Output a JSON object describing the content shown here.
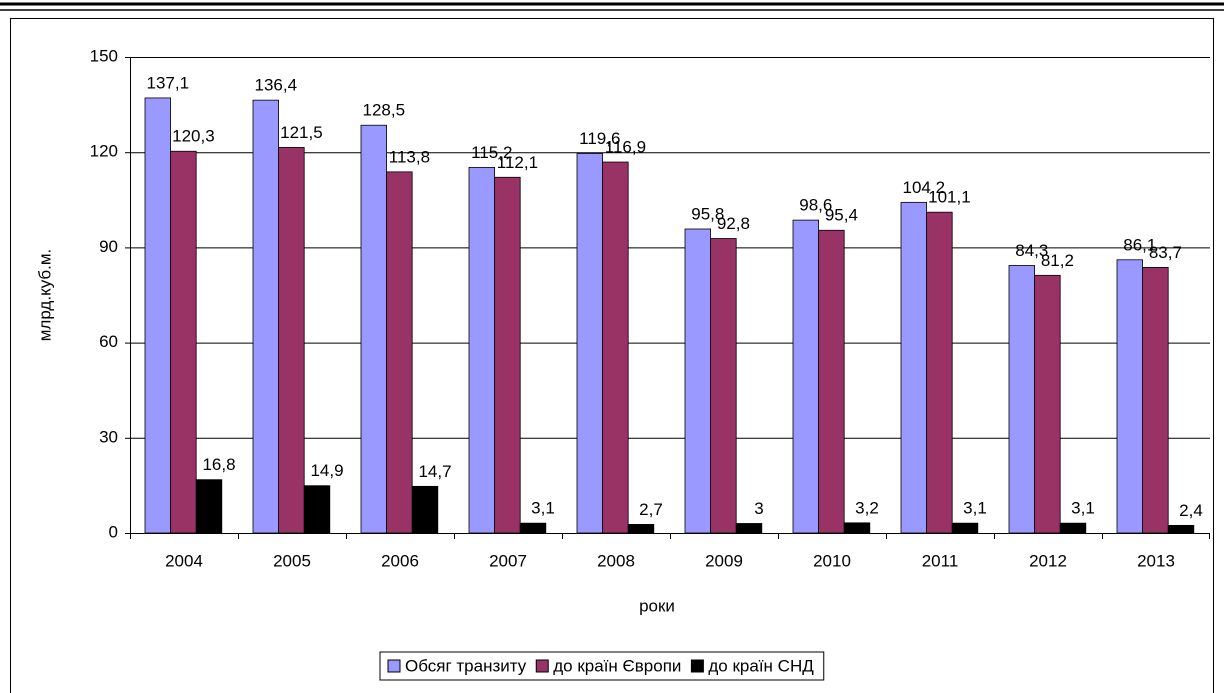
{
  "chart_data": {
    "type": "bar",
    "categories": [
      "2004",
      "2005",
      "2006",
      "2007",
      "2008",
      "2009",
      "2010",
      "2011",
      "2012",
      "2013"
    ],
    "series": [
      {
        "name": "Обсяг транзиту",
        "color": "#9999ff",
        "values": [
          137.1,
          136.4,
          128.5,
          115.2,
          119.6,
          95.8,
          98.6,
          104.2,
          84.3,
          86.1
        ],
        "value_labels": [
          "137,1",
          "136,4",
          "128,5",
          "115,2",
          "119,6",
          "95,8",
          "98,6",
          "104,2",
          "84,3",
          "86,1"
        ]
      },
      {
        "name": "до країн Європи",
        "color": "#993366",
        "values": [
          120.3,
          121.5,
          113.8,
          112.1,
          116.9,
          92.8,
          95.4,
          101.1,
          81.2,
          83.7
        ],
        "value_labels": [
          "120,3",
          "121,5",
          "113,8",
          "112,1",
          "116,9",
          "92,8",
          "95,4",
          "101,1",
          "81,2",
          "83,7"
        ]
      },
      {
        "name": "до країн СНД",
        "color": "#000000",
        "values": [
          16.8,
          14.9,
          14.7,
          3.1,
          2.7,
          3,
          3.2,
          3.1,
          3.1,
          2.4
        ],
        "value_labels": [
          "16,8",
          "14,9",
          "14,7",
          "3,1",
          "2,7",
          "3",
          "3,2",
          "3,1",
          "3,1",
          "2,4"
        ]
      }
    ],
    "x_label": "роки",
    "y_label": "млрд.куб.м.",
    "ylim": [
      0,
      150
    ],
    "yticks": [
      0,
      30,
      60,
      90,
      120,
      150
    ],
    "grid": true,
    "legend": "bottom"
  }
}
